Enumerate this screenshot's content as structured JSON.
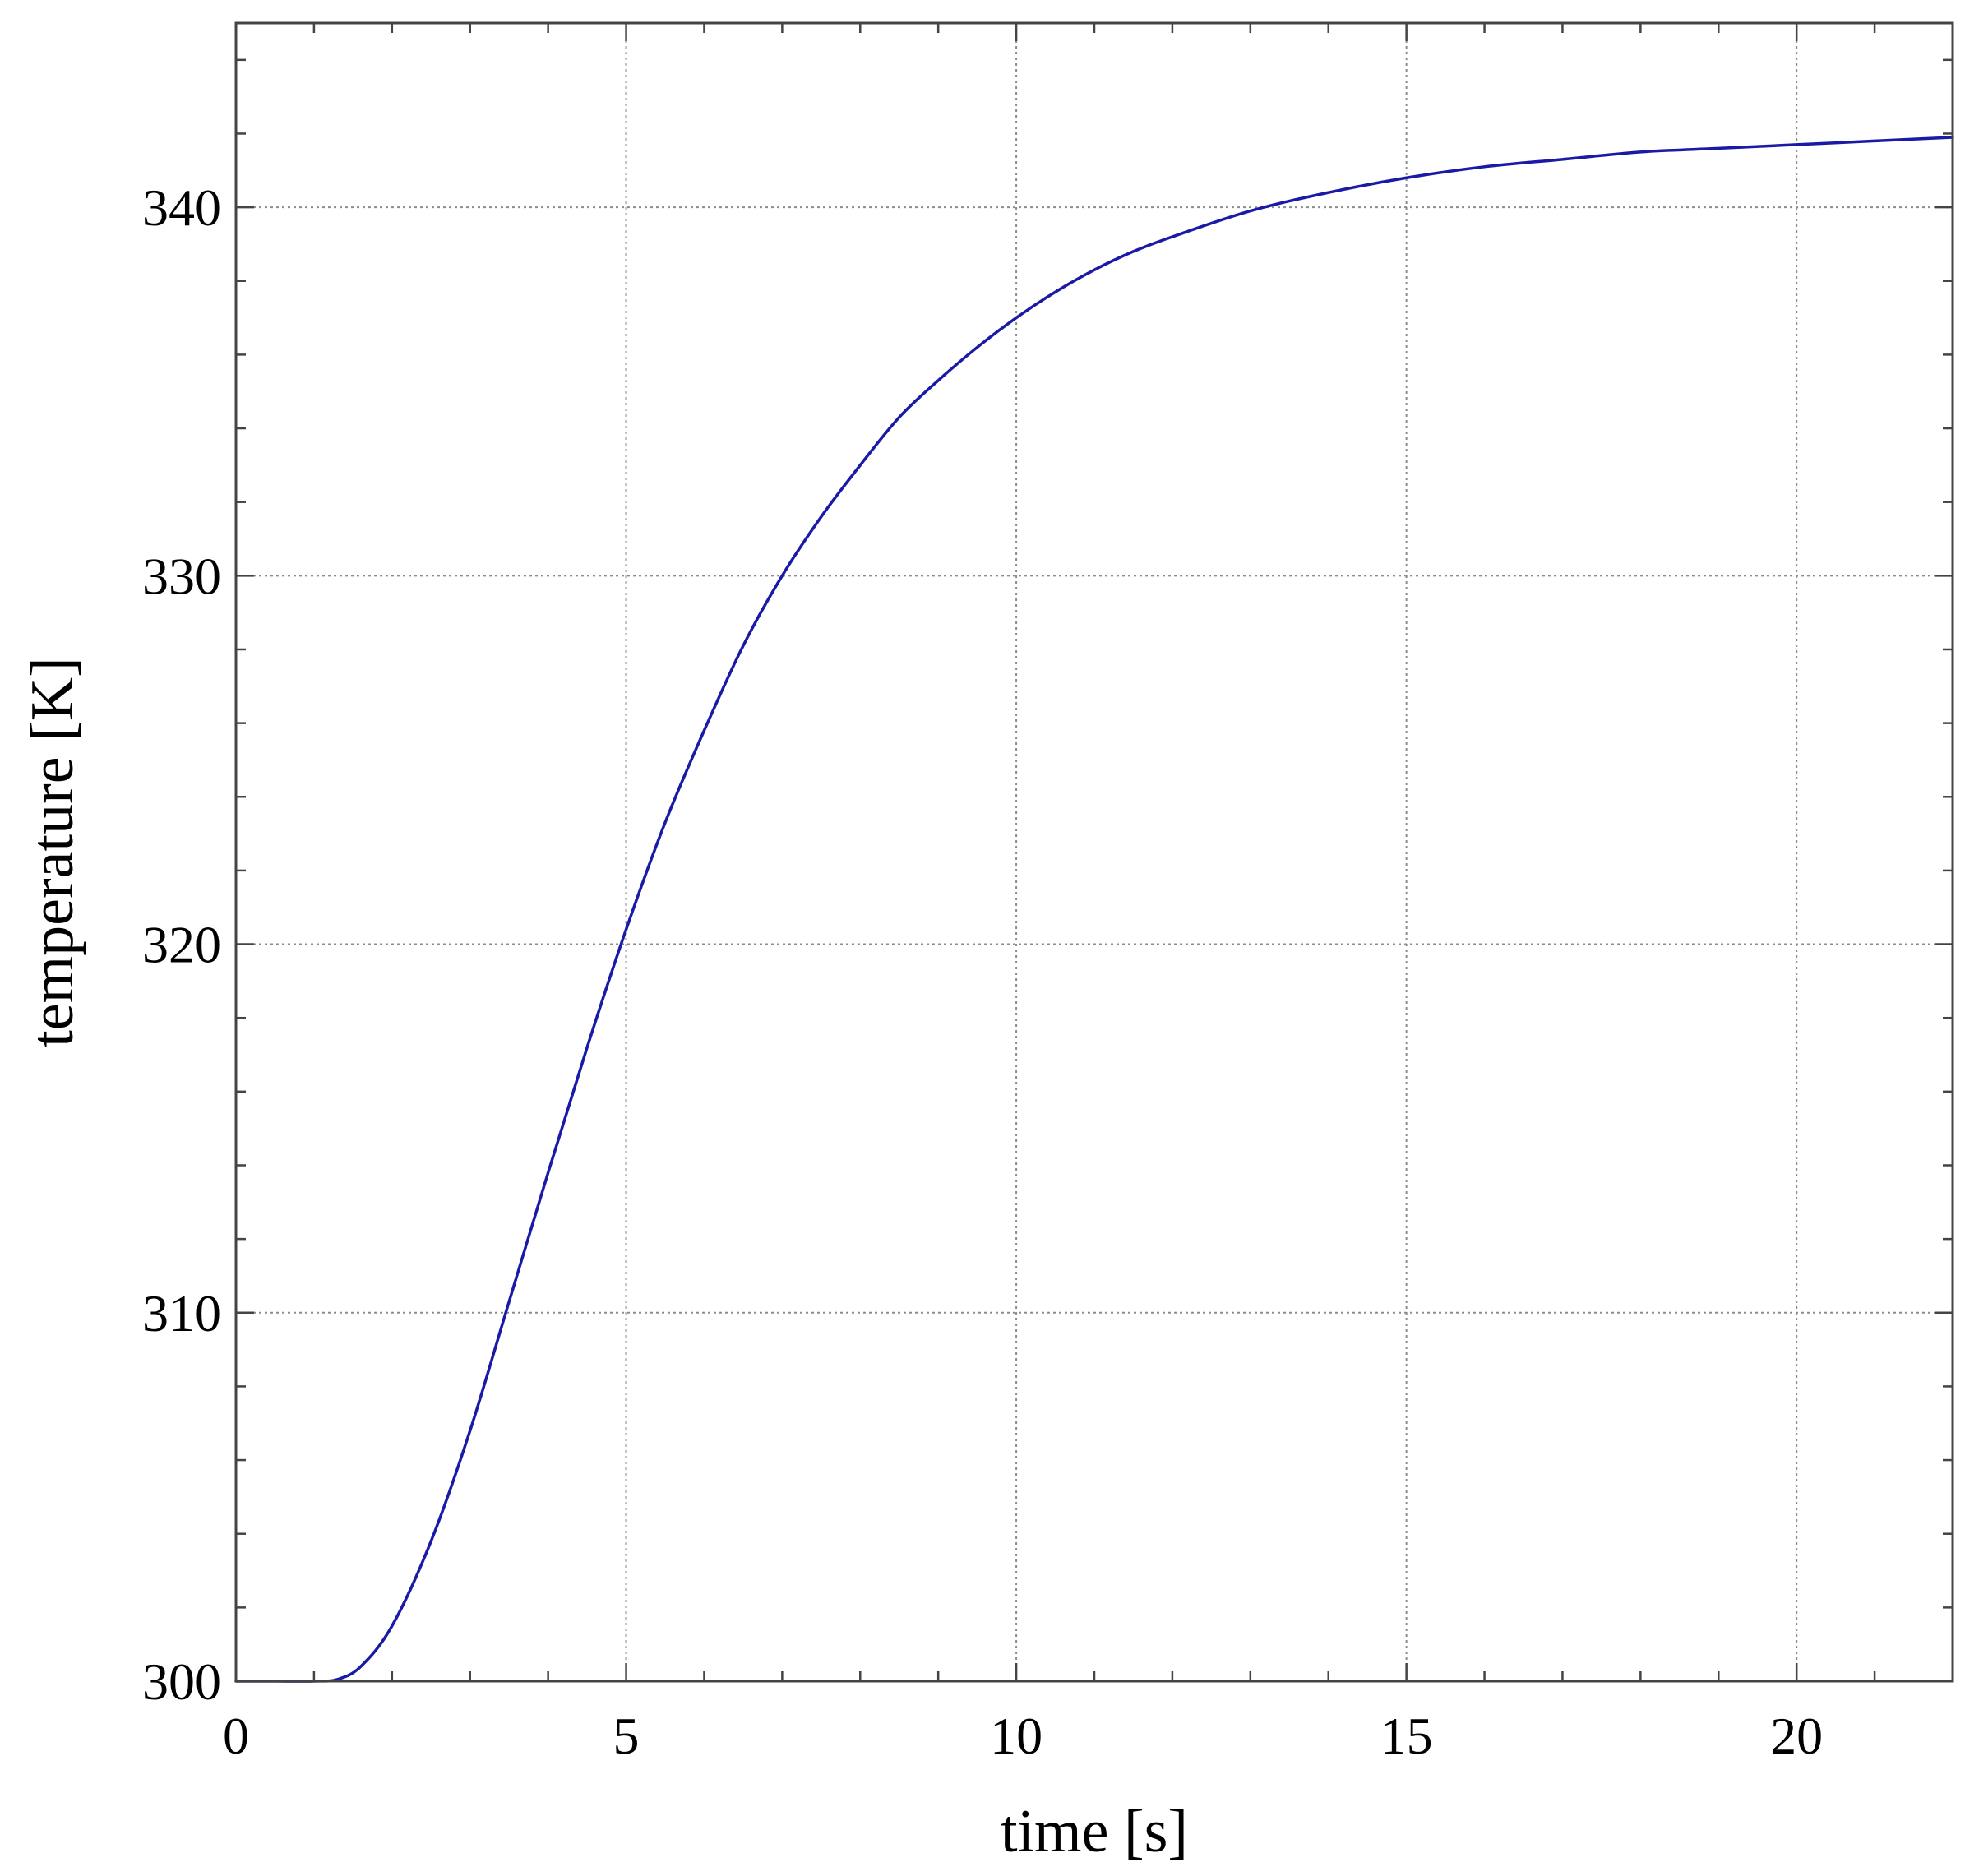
{
  "chart_data": {
    "type": "line",
    "title": "",
    "xlabel": "time [s]",
    "ylabel": "temperature [K]",
    "xlim": [
      0,
      22
    ],
    "ylim": [
      300,
      345
    ],
    "x_ticks": [
      0,
      5,
      10,
      15,
      20
    ],
    "x_tick_labels": [
      "0",
      "5",
      "10",
      "15",
      "20"
    ],
    "y_ticks": [
      300,
      310,
      320,
      330,
      340
    ],
    "y_tick_labels": [
      "300",
      "310",
      "320",
      "330",
      "340"
    ],
    "x_minor_step": 1,
    "y_minor_step": 2,
    "grid": true,
    "legend": "none",
    "series_color": "#1a1aa6",
    "series": [
      {
        "x": [
          0,
          0.5,
          1,
          1.3,
          1.6,
          2,
          2.5,
          3,
          3.5,
          4,
          4.5,
          5,
          5.5,
          6,
          6.5,
          7,
          7.5,
          8,
          8.5,
          9,
          9.5,
          10,
          10.5,
          11,
          11.5,
          12,
          13,
          14,
          15,
          16,
          17,
          18,
          19,
          20,
          21,
          22
        ],
        "y": [
          300,
          300,
          300,
          300.05,
          300.4,
          301.5,
          303.8,
          306.8,
          310.3,
          313.8,
          317.2,
          320.4,
          323.3,
          325.8,
          328.1,
          330.0,
          331.6,
          333.0,
          334.3,
          335.3,
          336.2,
          337.0,
          337.7,
          338.3,
          338.8,
          339.2,
          339.9,
          340.4,
          340.8,
          341.1,
          341.3,
          341.5,
          341.6,
          341.7,
          341.8,
          341.9
        ]
      }
    ]
  }
}
